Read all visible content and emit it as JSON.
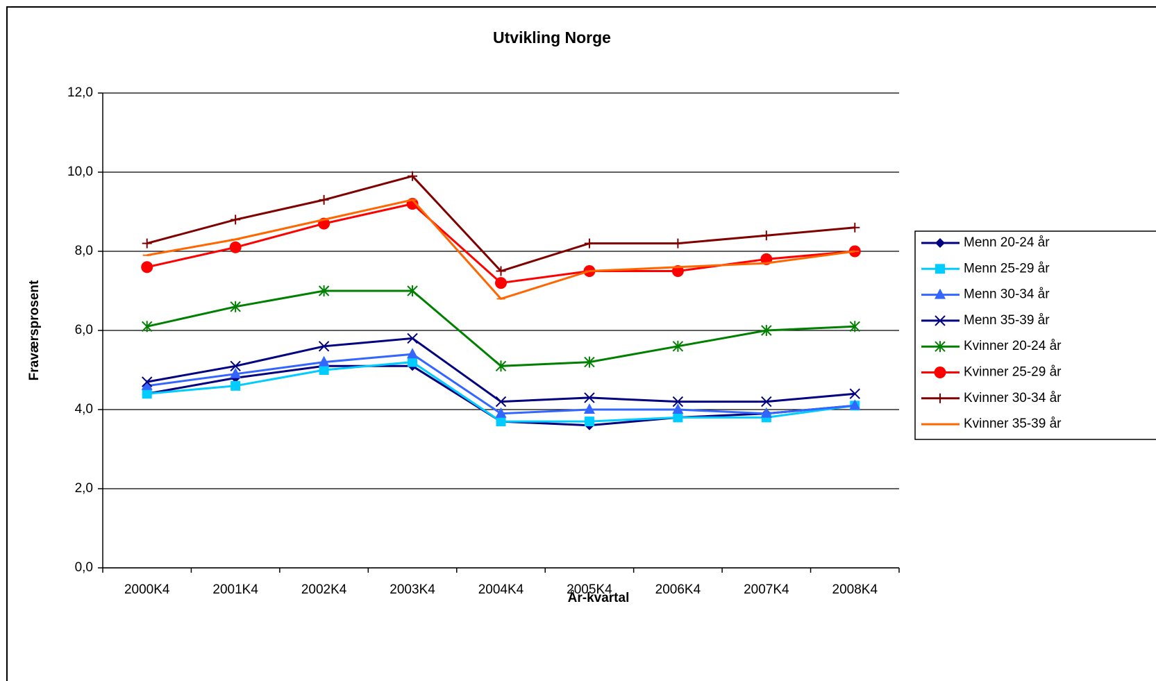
{
  "chart_data": {
    "type": "line",
    "title": "Utvikling Norge",
    "x_label": "År-kvartal",
    "y_label": "Fraværsprosent",
    "categories": [
      "2000K4",
      "2001K4",
      "2002K4",
      "2003K4",
      "2004K4",
      "2005K4",
      "2006K4",
      "2007K4",
      "2008K4"
    ],
    "ylim": [
      0,
      12
    ],
    "yticks": [
      {
        "value": 0,
        "label": "0,0"
      },
      {
        "value": 2,
        "label": "2,0"
      },
      {
        "value": 4,
        "label": "4,0"
      },
      {
        "value": 6,
        "label": "6,0"
      },
      {
        "value": 8,
        "label": "8,0"
      },
      {
        "value": 10,
        "label": "10,0"
      },
      {
        "value": 12,
        "label": "12,0"
      }
    ],
    "grid": true,
    "legend": "right",
    "series": [
      {
        "name": "Menn 20-24 år",
        "color": "#000080",
        "marker": "diamond",
        "values": [
          4.4,
          4.8,
          5.1,
          5.1,
          3.7,
          3.6,
          3.8,
          3.9,
          4.1
        ]
      },
      {
        "name": "Menn 25-29 år",
        "color": "#00ccff",
        "marker": "square",
        "values": [
          4.4,
          4.6,
          5.0,
          5.2,
          3.7,
          3.7,
          3.8,
          3.8,
          4.1
        ]
      },
      {
        "name": "Menn 30-34 år",
        "color": "#3366ff",
        "marker": "triangle",
        "values": [
          4.6,
          4.9,
          5.2,
          5.4,
          3.9,
          4.0,
          4.0,
          3.9,
          4.1
        ]
      },
      {
        "name": "Menn 35-39 år",
        "color": "#000080",
        "marker": "x",
        "values": [
          4.7,
          5.1,
          5.6,
          5.8,
          4.2,
          4.3,
          4.2,
          4.2,
          4.4
        ]
      },
      {
        "name": "Kvinner 20-24 år",
        "color": "#008000",
        "marker": "star",
        "values": [
          6.1,
          6.6,
          7.0,
          7.0,
          5.1,
          5.2,
          5.6,
          6.0,
          6.1
        ]
      },
      {
        "name": "Kvinner 25-29 år",
        "color": "#ff0000",
        "marker": "circle",
        "values": [
          7.6,
          8.1,
          8.7,
          9.2,
          7.2,
          7.5,
          7.5,
          7.8,
          8.0
        ]
      },
      {
        "name": "Kvinner 30-34 år",
        "color": "#800000",
        "marker": "plus",
        "values": [
          8.2,
          8.8,
          9.3,
          9.9,
          7.5,
          8.2,
          8.2,
          8.4,
          8.6
        ]
      },
      {
        "name": "Kvinner 35-39 år",
        "color": "#ff6600",
        "marker": "dash",
        "values": [
          7.9,
          8.3,
          8.8,
          9.3,
          6.8,
          7.5,
          7.6,
          7.7,
          8.0
        ]
      }
    ]
  }
}
